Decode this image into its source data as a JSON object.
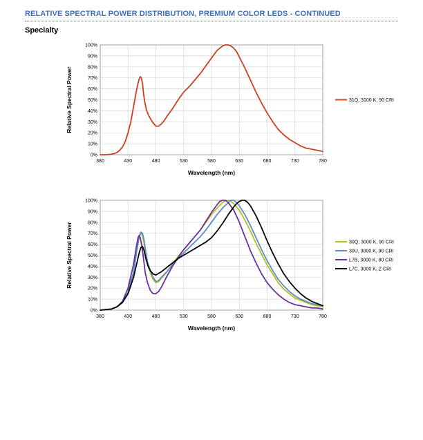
{
  "header": {
    "title": "RELATIVE SPECTRAL POWER DISTRIBUTION, PREMIUM COLOR LEDS - CONTINUED",
    "section": "Specialty"
  },
  "chart_data": [
    {
      "type": "line",
      "xlabel": "Wavelength (nm)",
      "ylabel": "Relative Spectral Power",
      "xlim": [
        380,
        780
      ],
      "ylim": [
        0,
        100
      ],
      "xticks": [
        "380",
        "430",
        "480",
        "530",
        "580",
        "630",
        "680",
        "730",
        "780"
      ],
      "yticks": [
        "0%",
        "10%",
        "20%",
        "30%",
        "40%",
        "50%",
        "60%",
        "70%",
        "80%",
        "90%",
        "100%"
      ],
      "grid": true,
      "legend": "right",
      "series": [
        {
          "name": "31Q, 3100 K, 90 CRI",
          "color": "#c8401e",
          "x": [
            380,
            390,
            400,
            405,
            410,
            415,
            420,
            425,
            430,
            435,
            440,
            445,
            448,
            450,
            452,
            454,
            456,
            458,
            460,
            463,
            466,
            470,
            475,
            480,
            485,
            490,
            495,
            500,
            510,
            520,
            530,
            540,
            550,
            560,
            570,
            580,
            590,
            600,
            605,
            610,
            615,
            620,
            625,
            630,
            640,
            650,
            660,
            670,
            680,
            690,
            700,
            710,
            720,
            730,
            740,
            750,
            760,
            770,
            780
          ],
          "y": [
            0,
            0,
            0.5,
            1,
            2,
            4,
            7,
            12,
            20,
            30,
            44,
            58,
            65,
            69,
            71,
            70,
            65,
            55,
            48,
            41,
            37,
            33,
            29,
            26,
            26,
            28,
            31,
            35,
            42,
            50,
            57,
            62,
            68,
            74,
            81,
            88,
            95,
            99,
            100,
            100,
            99,
            97,
            94,
            89,
            79,
            68,
            57,
            47,
            38,
            30,
            23,
            18,
            14,
            11,
            8,
            6,
            5,
            4,
            3
          ]
        }
      ]
    },
    {
      "type": "line",
      "xlabel": "Wavelength (nm)",
      "ylabel": "Relative Spectral Power",
      "xlim": [
        380,
        780
      ],
      "ylim": [
        0,
        100
      ],
      "xticks": [
        "380",
        "430",
        "480",
        "530",
        "580",
        "630",
        "680",
        "730",
        "780"
      ],
      "yticks": [
        "0%",
        "10%",
        "20%",
        "30%",
        "40%",
        "50%",
        "60%",
        "70%",
        "80%",
        "90%",
        "100%"
      ],
      "grid": true,
      "legend": "right",
      "series": [
        {
          "name": "30Q, 3000 K, 90 CRI",
          "color": "#b5bd1a",
          "x": [
            380,
            400,
            410,
            420,
            430,
            440,
            445,
            450,
            453,
            456,
            459,
            462,
            465,
            470,
            475,
            480,
            485,
            490,
            500,
            510,
            520,
            530,
            540,
            550,
            560,
            570,
            580,
            590,
            600,
            605,
            610,
            615,
            620,
            630,
            640,
            650,
            660,
            670,
            680,
            690,
            700,
            710,
            720,
            730,
            740,
            750,
            760,
            770,
            780
          ],
          "y": [
            0,
            1,
            3,
            7,
            16,
            35,
            52,
            66,
            70,
            68,
            60,
            50,
            42,
            34,
            28,
            25,
            26,
            29,
            35,
            42,
            49,
            55,
            61,
            67,
            73,
            80,
            87,
            93,
            98,
            99.5,
            100,
            99,
            97,
            91,
            82,
            72,
            61,
            51,
            41,
            33,
            25,
            19,
            15,
            11,
            9,
            7,
            5,
            4,
            3
          ]
        },
        {
          "name": "30U, 3000 K, 90 CRI",
          "color": "#5b8cc8",
          "x": [
            380,
            400,
            410,
            420,
            430,
            440,
            445,
            450,
            453,
            456,
            459,
            462,
            465,
            470,
            475,
            480,
            485,
            490,
            500,
            510,
            520,
            530,
            540,
            550,
            560,
            570,
            580,
            590,
            600,
            610,
            615,
            620,
            625,
            630,
            640,
            650,
            660,
            670,
            680,
            690,
            700,
            710,
            720,
            730,
            740,
            750,
            760,
            770,
            780
          ],
          "y": [
            0,
            1,
            3,
            7,
            16,
            35,
            52,
            67,
            71,
            70,
            63,
            53,
            44,
            36,
            30,
            26,
            27,
            30,
            35,
            41,
            47,
            52,
            57,
            62,
            67,
            73,
            80,
            87,
            93,
            98,
            100,
            100,
            98,
            95,
            87,
            77,
            66,
            55,
            45,
            36,
            28,
            22,
            17,
            13,
            10,
            8,
            6,
            5,
            4
          ]
        },
        {
          "name": "L7B, 3000 K, 80 CRI",
          "color": "#6a2fa0",
          "x": [
            380,
            400,
            410,
            420,
            430,
            440,
            445,
            448,
            450,
            452,
            455,
            458,
            461,
            465,
            470,
            475,
            480,
            485,
            490,
            495,
            500,
            510,
            520,
            530,
            540,
            550,
            560,
            570,
            580,
            590,
            595,
            600,
            605,
            610,
            620,
            630,
            640,
            650,
            660,
            670,
            680,
            690,
            700,
            710,
            720,
            730,
            740,
            750,
            760,
            770,
            780
          ],
          "y": [
            0,
            1,
            3,
            8,
            20,
            42,
            58,
            66,
            68,
            66,
            58,
            46,
            34,
            25,
            18,
            15,
            15,
            17,
            21,
            26,
            31,
            40,
            48,
            55,
            61,
            67,
            73,
            81,
            89,
            96,
            99,
            100,
            100,
            98,
            91,
            80,
            67,
            54,
            43,
            33,
            25,
            19,
            14,
            10,
            7,
            5,
            4,
            3,
            2,
            2,
            1
          ]
        },
        {
          "name": "L7C, 3000 K, Z CRI",
          "color": "#000000",
          "x": [
            380,
            400,
            410,
            420,
            430,
            440,
            445,
            450,
            453,
            456,
            459,
            462,
            466,
            470,
            475,
            480,
            490,
            500,
            510,
            520,
            530,
            540,
            550,
            560,
            570,
            580,
            590,
            600,
            610,
            620,
            625,
            630,
            635,
            640,
            645,
            650,
            660,
            670,
            680,
            690,
            700,
            710,
            720,
            730,
            740,
            750,
            760,
            770,
            780
          ],
          "y": [
            0,
            1,
            3,
            7,
            15,
            30,
            41,
            52,
            57,
            58,
            54,
            47,
            40,
            36,
            33,
            32,
            35,
            39,
            43,
            47,
            50,
            53,
            56,
            59,
            62,
            66,
            72,
            79,
            87,
            94,
            97,
            99,
            100,
            100,
            98,
            95,
            86,
            75,
            63,
            52,
            42,
            33,
            26,
            20,
            15,
            11,
            8,
            6,
            4
          ]
        }
      ]
    }
  ]
}
